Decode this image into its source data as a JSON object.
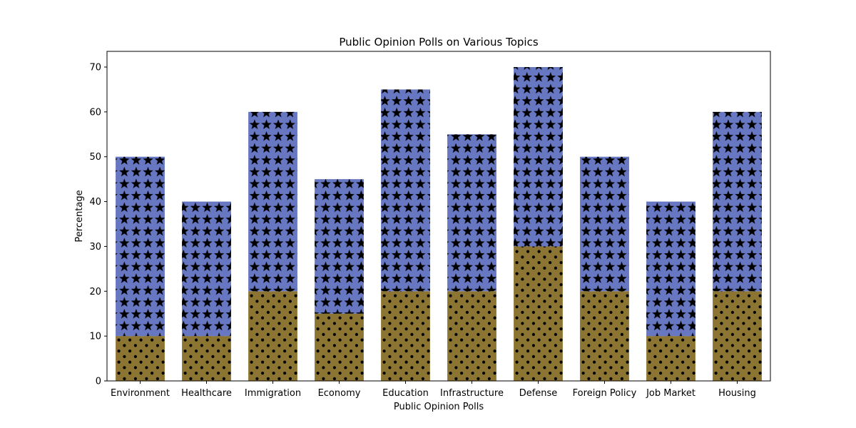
{
  "chart_data": {
    "type": "bar",
    "stacked": true,
    "title": "Public Opinion Polls on Various Topics",
    "xlabel": "Public Opinion Polls",
    "ylabel": "Percentage",
    "categories": [
      "Environment",
      "Healthcare",
      "Immigration",
      "Economy",
      "Education",
      "Infrastructure",
      "Defense",
      "Foreign Policy",
      "Job Market",
      "Housing"
    ],
    "series": [
      {
        "values": [
          10,
          10,
          20,
          15,
          20,
          20,
          30,
          20,
          10,
          20
        ],
        "color": "#8c7432",
        "hatch": "dots"
      },
      {
        "values": [
          40,
          30,
          40,
          30,
          45,
          35,
          40,
          30,
          30,
          40
        ],
        "color": "#6777c2",
        "hatch": "stars"
      }
    ],
    "ylim": [
      0,
      73.5
    ],
    "yticks": [
      0,
      10,
      20,
      30,
      40,
      50,
      60,
      70
    ],
    "grid": false
  }
}
